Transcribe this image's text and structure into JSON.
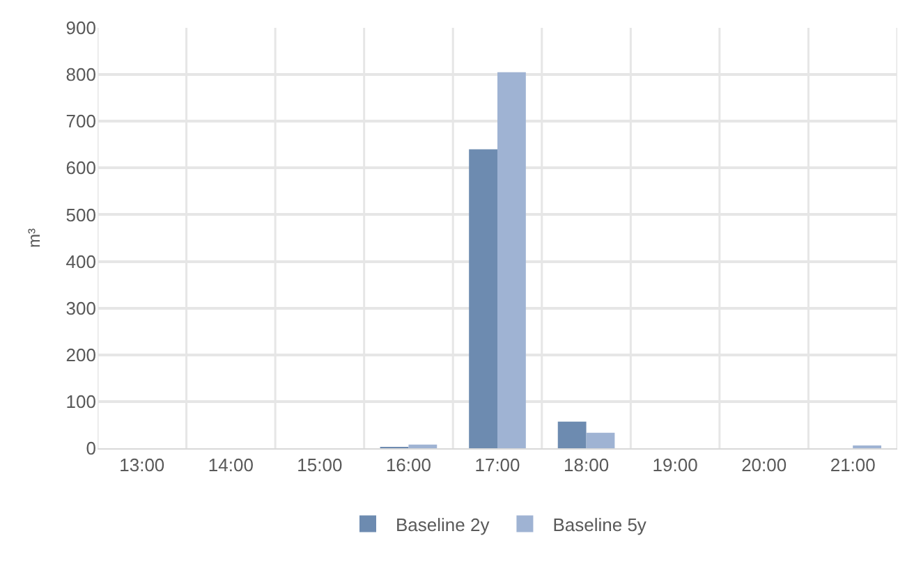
{
  "chart_data": {
    "type": "bar",
    "ylabel": "m³",
    "categories": [
      "13:00",
      "14:00",
      "15:00",
      "16:00",
      "17:00",
      "18:00",
      "19:00",
      "20:00",
      "21:00"
    ],
    "series": [
      {
        "name": "Baseline 2y",
        "color": "#6d8bb0",
        "values": [
          0,
          0,
          0,
          1,
          640,
          57,
          0,
          0,
          0
        ]
      },
      {
        "name": "Baseline 5y",
        "color": "#9fb3d3",
        "values": [
          0,
          0,
          0,
          8,
          805,
          33,
          0,
          0,
          3
        ]
      }
    ],
    "ylim": [
      0,
      900
    ],
    "yticks": [
      0,
      100,
      200,
      300,
      400,
      500,
      600,
      700,
      800,
      900
    ],
    "grid": true,
    "legend": "bottom"
  }
}
